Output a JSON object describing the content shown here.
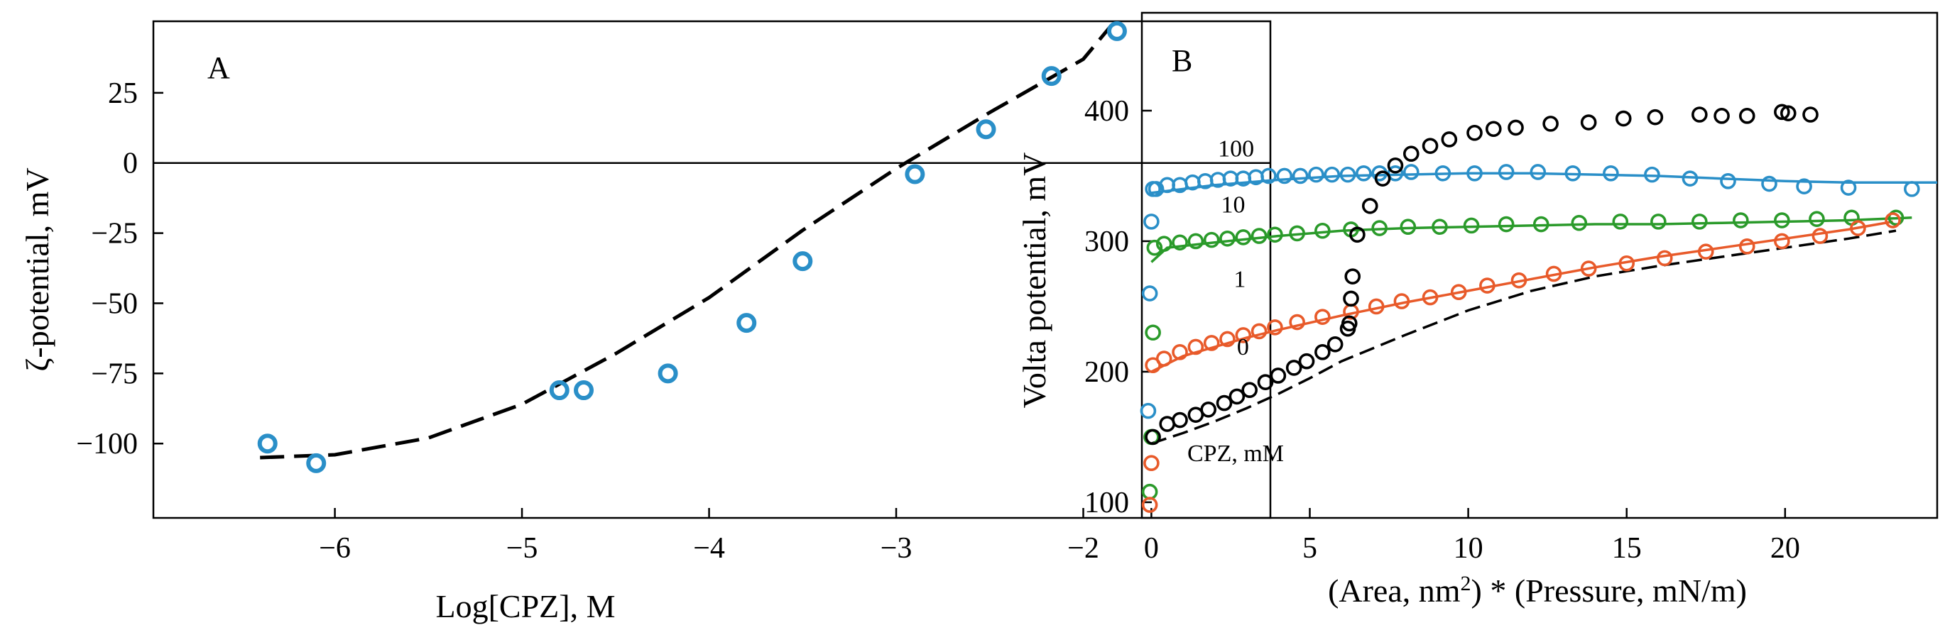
{
  "chart_data": [
    {
      "panel": "A",
      "type": "scatter",
      "panel_label": "A",
      "xlabel": "Log[CPZ], M",
      "ylabel": "ζ-potential, mV",
      "xlim": [
        -6.97,
        -1.0
      ],
      "ylim": [
        -126.5,
        50.5
      ],
      "xticks": [
        -6,
        -5,
        -4,
        -3,
        -2
      ],
      "xtick_labels": [
        "−6",
        "−5",
        "−4",
        "−3",
        "−2"
      ],
      "yticks": [
        25,
        0,
        -25,
        -50,
        -75,
        -100
      ],
      "ytick_labels": [
        "25",
        "0",
        "−25",
        "−50",
        "−75",
        "−100"
      ],
      "zero_line": 0,
      "colors": {
        "points": "#2a8fc8",
        "fit": "#000000",
        "frame": "#000000"
      },
      "series": [
        {
          "name": "data",
          "style": "markers",
          "x": [
            -6.36,
            -6.1,
            -4.8,
            -4.67,
            -4.22,
            -3.8,
            -3.5,
            -2.9,
            -2.52,
            -2.17,
            -1.82
          ],
          "y": [
            -100,
            -107,
            -81,
            -81,
            -75,
            -57,
            -35,
            -4,
            12,
            31,
            47
          ]
        },
        {
          "name": "fit",
          "style": "dashed",
          "x": [
            -6.4,
            -6.0,
            -5.5,
            -5.0,
            -4.5,
            -4.0,
            -3.5,
            -3.0,
            -2.5,
            -2.0,
            -1.85
          ],
          "y": [
            -105,
            -104,
            -98,
            -86,
            -68,
            -48,
            -24,
            -2,
            18,
            37,
            49
          ]
        }
      ]
    },
    {
      "panel": "B",
      "type": "scatter",
      "panel_label": "B",
      "xlabel_main": "(Area, nm",
      "xlabel_sup": "2",
      "xlabel_rest": ") * (Pressure, mN/m)",
      "ylabel": "Volta potential, mV",
      "xlim": [
        -0.3,
        24.8
      ],
      "ylim": [
        88,
        475
      ],
      "xticks": [
        0,
        5,
        10,
        15,
        20
      ],
      "xtick_labels": [
        "0",
        "5",
        "10",
        "15",
        "20"
      ],
      "yticks": [
        100,
        200,
        300,
        400
      ],
      "ytick_labels": [
        "100",
        "200",
        "300",
        "400"
      ],
      "legend_title": "CPZ, mM",
      "series": [
        {
          "name": "100",
          "label": "100",
          "color": "#2a8fc8",
          "label_at": [
            2.1,
            365
          ],
          "x": [
            -0.1,
            -0.05,
            0.0,
            0.05,
            0.15,
            0.5,
            0.9,
            1.3,
            1.7,
            2.1,
            2.5,
            2.9,
            3.3,
            3.7,
            4.2,
            4.7,
            5.2,
            5.7,
            6.2,
            6.7,
            7.2,
            7.7,
            8.2,
            9.2,
            10.2,
            11.2,
            12.2,
            13.3,
            14.5,
            15.8,
            17.0,
            18.2,
            19.5,
            20.6,
            22.0,
            24.0
          ],
          "y": [
            170,
            260,
            315,
            340,
            340,
            343,
            343,
            345,
            346,
            347,
            348,
            348,
            349,
            350,
            350,
            350,
            351,
            351,
            351,
            352,
            352,
            352,
            353,
            352,
            352,
            353,
            353,
            352,
            352,
            351,
            348,
            346,
            344,
            342,
            341,
            340
          ],
          "fit_x": [
            0.0,
            2.0,
            4.0,
            6.0,
            8.0,
            10.0,
            12.0,
            14.0,
            16.0,
            18.0,
            20.0,
            22.0,
            24.8
          ],
          "fit_y": [
            337,
            343,
            347,
            350,
            351,
            352,
            352,
            351,
            350,
            348,
            346,
            345,
            345
          ]
        },
        {
          "name": "10",
          "label": "10",
          "color": "#2a9a2a",
          "label_at": [
            2.2,
            322
          ],
          "x": [
            -0.05,
            0.0,
            0.05,
            0.1,
            0.4,
            0.9,
            1.4,
            1.9,
            2.4,
            2.9,
            3.4,
            3.9,
            4.6,
            5.4,
            6.3,
            7.2,
            8.1,
            9.1,
            10.1,
            11.2,
            12.3,
            13.5,
            14.8,
            16.0,
            17.3,
            18.6,
            19.9,
            21.0,
            22.1,
            23.5
          ],
          "y": [
            108,
            150,
            230,
            295,
            298,
            299,
            300,
            301,
            302,
            303,
            304,
            305,
            306,
            308,
            309,
            310,
            311,
            311,
            312,
            313,
            313,
            314,
            315,
            315,
            315,
            316,
            316,
            317,
            318,
            318
          ],
          "fit_x": [
            0.0,
            0.5,
            2.0,
            4.0,
            6.0,
            8.0,
            10.0,
            12.0,
            14.0,
            16.0,
            18.0,
            20.0,
            22.0,
            24.0
          ],
          "fit_y": [
            284,
            295,
            299,
            304,
            308,
            310,
            311,
            312,
            313,
            313,
            314,
            315,
            316,
            318
          ]
        },
        {
          "name": "1",
          "label": "1",
          "color": "#e85a2a",
          "label_at": [
            2.6,
            265
          ],
          "x": [
            -0.05,
            0.0,
            0.05,
            0.4,
            0.9,
            1.4,
            1.9,
            2.4,
            2.9,
            3.4,
            3.9,
            4.6,
            5.4,
            6.3,
            7.1,
            7.9,
            8.8,
            9.7,
            10.6,
            11.6,
            12.7,
            13.8,
            15.0,
            16.2,
            17.5,
            18.8,
            19.9,
            21.1,
            22.3,
            23.4
          ],
          "y": [
            98,
            130,
            205,
            210,
            215,
            219,
            222,
            225,
            228,
            231,
            234,
            238,
            242,
            246,
            250,
            254,
            257,
            261,
            266,
            270,
            275,
            279,
            283,
            287,
            292,
            296,
            300,
            304,
            310,
            316
          ],
          "fit_x": [
            0.0,
            1.0,
            2.0,
            3.0,
            4.0,
            6.0,
            8.0,
            10.0,
            12.0,
            14.0,
            16.0,
            18.0,
            20.0,
            22.0,
            23.4
          ],
          "fit_y": [
            200,
            212,
            219,
            226,
            232,
            243,
            253,
            262,
            271,
            280,
            288,
            295,
            302,
            309,
            315
          ]
        },
        {
          "name": "0",
          "label": "0",
          "color": "#000000",
          "label_at": [
            2.7,
            213
          ],
          "x": [
            0.05,
            0.5,
            0.9,
            1.4,
            1.8,
            2.3,
            2.7,
            3.1,
            3.6,
            4.0,
            4.5,
            4.9,
            5.4,
            5.8,
            6.2,
            6.25,
            6.3,
            6.35,
            6.5,
            6.9,
            7.3,
            7.7,
            8.2,
            8.8,
            9.4,
            10.2,
            10.8,
            11.5,
            12.6,
            13.8,
            14.9,
            15.9,
            17.3,
            18.0,
            18.8,
            19.9,
            20.1,
            20.8
          ],
          "y": [
            150,
            160,
            163,
            167,
            171,
            176,
            181,
            186,
            192,
            197,
            203,
            208,
            215,
            221,
            233,
            237,
            256,
            273,
            305,
            327,
            348,
            358,
            367,
            373,
            378,
            383,
            386,
            387,
            390,
            391,
            394,
            395,
            397,
            396,
            396,
            399,
            398,
            397
          ],
          "fit_x": [
            0.0,
            1.0,
            2.0,
            3.0,
            4.0,
            5.0,
            6.0,
            8.0,
            10.0,
            12.0,
            14.0,
            16.0,
            18.0,
            20.0,
            22.0,
            23.5
          ],
          "fit_y": [
            145,
            153,
            162,
            172,
            183,
            195,
            208,
            228,
            247,
            262,
            273,
            281,
            288,
            295,
            302,
            308
          ],
          "fit_style": "dashed"
        }
      ]
    }
  ]
}
